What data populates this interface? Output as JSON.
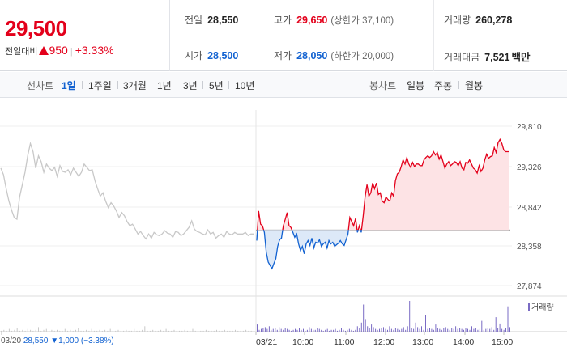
{
  "header": {
    "price": "29,500",
    "change_label": "전일대비",
    "change_amount": "950",
    "change_pct": "+3.33%",
    "prev_close": {
      "label": "전일",
      "value": "28,550"
    },
    "open": {
      "label": "시가",
      "value": "28,500"
    },
    "high": {
      "label": "고가",
      "value": "29,650",
      "note": "(상한가 37,100)"
    },
    "low": {
      "label": "저가",
      "value": "28,050",
      "note": "(하한가 20,000)"
    },
    "volume": {
      "label": "거래량",
      "value": "260,278"
    },
    "trade_value": {
      "label": "거래대금",
      "value": "7,521",
      "unit": "백만"
    }
  },
  "periods": {
    "label": "선차트",
    "items": [
      "1일",
      "1주일",
      "3개월",
      "1년",
      "3년",
      "5년",
      "10년"
    ],
    "selected": "1일"
  },
  "candle": {
    "label": "봉차트",
    "items": [
      "일봉",
      "주봉",
      "월봉"
    ]
  },
  "prev_day_info": {
    "date": "03/20",
    "close": "28,550",
    "change": "1,000",
    "pct": "(−3.38%)"
  },
  "volume_label": "거래량",
  "colors": {
    "up": "#e3001b",
    "down": "#1262d1",
    "prev_day": "#c8c8c8",
    "volume": "#7a6bc4"
  },
  "chart_data": {
    "type": "line",
    "y_ticks": [
      "29,810",
      "29,326",
      "28,842",
      "28,358",
      "27,874"
    ],
    "ylim": [
      27874,
      29810
    ],
    "baseline": 28550,
    "x_ticks": [
      "03/20",
      "03/21",
      "10:00",
      "11:00",
      "12:00",
      "13:00",
      "14:00",
      "15:00"
    ],
    "series": [
      {
        "values": [
          29300,
          29220,
          29050,
          28900,
          28790,
          28700,
          28680,
          28950,
          29100,
          29250,
          29450,
          29600,
          29500,
          29300,
          29450,
          29380,
          29250,
          29350,
          29300,
          29270,
          29310,
          29200,
          29330,
          29260,
          29250,
          29280,
          29220,
          29300,
          29250,
          29200,
          29250,
          29350,
          29310,
          29270,
          29280,
          29150,
          29050,
          28960,
          29000,
          28900,
          28820,
          28880,
          28840,
          28780,
          28700,
          28760,
          28720,
          28650,
          28600,
          28620,
          28560,
          28500,
          28530,
          28480,
          28440,
          28500,
          28450,
          28520,
          28490,
          28480,
          28500,
          28540,
          28510,
          28500,
          28460,
          28530,
          28520,
          28480,
          28500,
          28540,
          28580,
          28660,
          28560,
          28530,
          28520,
          28500,
          28490,
          28550,
          28500,
          28520,
          28450,
          28480,
          28500,
          28460,
          28530,
          28500,
          28490,
          28520,
          28500,
          28500,
          28500,
          28520,
          28480,
          28500,
          28500
        ]
      },
      {
        "values": [
          28420,
          28780,
          28620,
          28600,
          28520,
          28280,
          28160,
          28120,
          28080,
          28140,
          28200,
          28350,
          28430,
          28450,
          28600,
          28680,
          28760,
          28600,
          28580,
          28520,
          28460,
          28500,
          28380,
          28300,
          28350,
          28260,
          28380,
          28420,
          28360,
          28450,
          28330,
          28400,
          28390,
          28430,
          28350,
          28380,
          28400,
          28330,
          28420,
          28380,
          28400,
          28350,
          28370,
          28390,
          28420,
          28380,
          28360,
          28430,
          28500,
          28700,
          28650,
          28600,
          28690,
          28520,
          28600,
          28520,
          28720,
          28950,
          29100,
          28960,
          29000,
          29120,
          29050,
          29120,
          28980,
          29000,
          28900,
          28880,
          28950,
          28920,
          28900,
          29000,
          28960,
          29150,
          29230,
          29250,
          29320,
          29400,
          29350,
          29430,
          29350,
          29310,
          29370,
          29320,
          29350,
          29350,
          29330,
          29330,
          29400,
          29430,
          29450,
          29430,
          29450,
          29500,
          29460,
          29490,
          29410,
          29460,
          29380,
          29300,
          29350,
          29380,
          29330,
          29350,
          29380,
          29370,
          29330,
          29380,
          29300,
          29280,
          29370,
          29360,
          29400,
          29350,
          29300,
          29280,
          29240,
          29330,
          29260,
          29300,
          29400,
          29470,
          29420,
          29440,
          29450,
          29550,
          29490,
          29610,
          29650,
          29600,
          29520,
          29500,
          29500,
          29500
        ]
      }
    ],
    "volume": [
      1,
      2,
      1,
      3,
      1,
      2,
      4,
      1,
      2,
      1,
      3,
      2,
      1,
      2,
      5,
      1,
      2,
      3,
      1,
      2,
      1,
      2,
      1,
      1,
      3,
      1,
      2,
      1,
      2,
      4,
      1,
      1,
      2,
      1,
      3,
      1,
      1,
      2,
      1,
      2,
      1,
      3,
      1,
      1,
      2,
      1,
      1,
      2,
      1,
      1,
      3,
      1,
      1,
      2,
      6,
      1,
      1,
      2,
      1,
      1,
      2,
      1,
      3,
      1,
      1,
      2,
      1,
      1,
      1,
      2,
      1,
      1,
      3,
      1,
      2,
      1,
      1,
      2,
      1,
      1,
      1,
      2,
      1,
      1,
      2,
      1,
      1,
      1,
      2,
      1,
      1,
      1,
      2,
      1,
      1,
      2,
      8,
      2,
      3,
      4,
      5,
      3,
      6,
      2,
      3,
      4,
      2,
      5,
      3,
      2,
      4,
      3,
      2,
      1,
      2,
      3,
      2,
      4,
      2,
      3,
      1,
      2,
      5,
      3,
      2,
      2,
      4,
      3,
      2,
      1,
      2,
      3,
      1,
      2,
      2,
      3,
      1,
      2,
      4,
      2,
      1,
      2,
      3,
      2,
      1,
      2,
      6,
      4,
      10,
      30,
      14,
      6,
      4,
      8,
      5,
      3,
      2,
      3,
      4,
      5,
      3,
      2,
      6,
      3,
      2,
      4,
      3,
      2,
      3,
      5,
      2,
      6,
      34,
      4,
      3,
      10,
      5,
      3,
      6,
      2,
      18,
      3,
      4,
      3,
      2,
      8,
      4,
      3,
      2,
      4,
      5,
      3,
      2,
      4,
      3,
      6,
      3,
      4,
      3,
      2,
      4,
      3,
      2,
      6,
      3,
      4,
      2,
      3,
      12,
      2,
      3,
      4,
      3,
      5,
      2,
      16,
      4,
      9,
      3,
      2,
      4,
      28,
      5
    ]
  }
}
